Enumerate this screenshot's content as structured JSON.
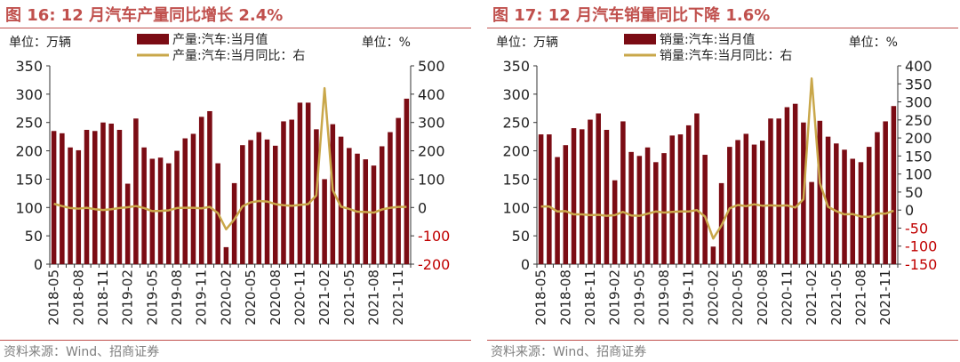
{
  "panels": [
    {
      "title": "图 16:  12 月汽车产量同比增长 2.4%",
      "source": "资料来源：Wind、招商证券",
      "unit_left": "单位：万辆",
      "unit_right": "单位：%",
      "chart_data": {
        "type": "bar",
        "x": [
          "2018-05",
          "2018-06",
          "2018-07",
          "2018-08",
          "2018-09",
          "2018-10",
          "2018-11",
          "2018-12",
          "2019-01",
          "2019-02",
          "2019-03",
          "2019-04",
          "2019-05",
          "2019-06",
          "2019-07",
          "2019-08",
          "2019-09",
          "2019-10",
          "2019-11",
          "2019-12",
          "2020-01",
          "2020-02",
          "2020-03",
          "2020-04",
          "2020-05",
          "2020-06",
          "2020-07",
          "2020-08",
          "2020-09",
          "2020-10",
          "2020-11",
          "2020-12",
          "2021-01",
          "2021-02",
          "2021-03",
          "2021-04",
          "2021-05",
          "2021-06",
          "2021-07",
          "2021-08",
          "2021-09",
          "2021-10",
          "2021-11",
          "2021-12"
        ],
        "xticks": [
          "2018-05",
          "2018-08",
          "2018-11",
          "2019-02",
          "2019-05",
          "2019-08",
          "2019-11",
          "2020-02",
          "2020-05",
          "2020-08",
          "2020-11",
          "2021-02",
          "2021-05",
          "2021-08",
          "2021-11"
        ],
        "series": [
          {
            "name": "产量:汽车:当月值",
            "type": "bar",
            "axis": "left",
            "color": "#7b0c14",
            "values": [
              235,
              231,
              206,
              201,
              237,
              235,
              250,
              248,
              237,
              142,
              257,
              206,
              186,
              188,
              178,
              200,
              222,
              230,
              260,
              270,
              178,
              30,
              143,
              210,
              219,
              233,
              220,
              209,
              252,
              255,
              285,
              285,
              238,
              150,
              247,
              225,
              205,
              195,
              185,
              174,
              208,
              233,
              258,
              292
            ]
          },
          {
            "name": "产量:汽车:当月同比：右",
            "type": "line",
            "axis": "right",
            "color": "#c9a74a",
            "values": [
              13,
              5,
              -2,
              -4,
              -1,
              -6,
              -9,
              -6,
              -2,
              1,
              5,
              -2,
              -13,
              -12,
              -10,
              -2,
              -1,
              -1,
              -3,
              2,
              -20,
              -77,
              -42,
              4,
              18,
              23,
              21,
              12,
              8,
              6,
              9,
              12,
              43,
              421,
              61,
              3,
              -5,
              -15,
              -16,
              -18,
              -7,
              -1,
              2,
              2
            ]
          }
        ],
        "y_left": {
          "min": 0,
          "max": 350,
          "ticks": [
            "0",
            "50",
            "100",
            "150",
            "200",
            "250",
            "300",
            "350"
          ]
        },
        "y_right": {
          "min": -200,
          "max": 500,
          "ticks": [
            "-200",
            "-100",
            "0",
            "100",
            "200",
            "300",
            "400",
            "500"
          ]
        }
      }
    },
    {
      "title": "图 17:  12 月汽车销量同比下降 1.6%",
      "source": "资料来源：Wind、招商证券",
      "unit_left": "单位：万辆",
      "unit_right": "单位：%",
      "chart_data": {
        "type": "bar",
        "x": [
          "2018-05",
          "2018-06",
          "2018-07",
          "2018-08",
          "2018-09",
          "2018-10",
          "2018-11",
          "2018-12",
          "2019-01",
          "2019-02",
          "2019-03",
          "2019-04",
          "2019-05",
          "2019-06",
          "2019-07",
          "2019-08",
          "2019-09",
          "2019-10",
          "2019-11",
          "2019-12",
          "2020-01",
          "2020-02",
          "2020-03",
          "2020-04",
          "2020-05",
          "2020-06",
          "2020-07",
          "2020-08",
          "2020-09",
          "2020-10",
          "2020-11",
          "2020-12",
          "2021-01",
          "2021-02",
          "2021-03",
          "2021-04",
          "2021-05",
          "2021-06",
          "2021-07",
          "2021-08",
          "2021-09",
          "2021-10",
          "2021-11",
          "2021-12"
        ],
        "xticks": [
          "2018-05",
          "2018-08",
          "2018-11",
          "2019-02",
          "2019-05",
          "2019-08",
          "2019-11",
          "2020-02",
          "2020-05",
          "2020-08",
          "2020-11",
          "2021-02",
          "2021-05",
          "2021-08",
          "2021-11"
        ],
        "series": [
          {
            "name": "销量:汽车:当月值",
            "type": "bar",
            "axis": "left",
            "color": "#7b0c14",
            "values": [
              229,
              229,
              189,
              210,
              240,
              238,
              255,
              266,
              237,
              148,
              252,
              198,
              191,
              206,
              180,
              196,
              227,
              229,
              245,
              266,
              193,
              31,
              143,
              207,
              219,
              230,
              211,
              218,
              257,
              257,
              277,
              283,
              250,
              145,
              253,
              225,
              213,
              202,
              186,
              180,
              207,
              233,
              252,
              279
            ]
          },
          {
            "name": "销量:汽车:当月同比：右",
            "type": "line",
            "axis": "right",
            "color": "#c9a74a",
            "values": [
              10,
              10,
              -4,
              -3,
              -12,
              -12,
              -14,
              -13,
              -16,
              -14,
              -5,
              -15,
              -16,
              -10,
              -4,
              -7,
              -5,
              -4,
              -4,
              0,
              -18,
              -79,
              -43,
              5,
              14,
              11,
              16,
              12,
              13,
              12,
              13,
              7,
              30,
              365,
              75,
              9,
              -3,
              -12,
              -11,
              -18,
              -19,
              -9,
              -10,
              -2
            ]
          }
        ],
        "y_left": {
          "min": 0,
          "max": 350,
          "ticks": [
            "0",
            "50",
            "100",
            "150",
            "200",
            "250",
            "300",
            "350"
          ]
        },
        "y_right": {
          "min": -150,
          "max": 400,
          "ticks": [
            "-150",
            "-100",
            "-50",
            "0",
            "50",
            "100",
            "150",
            "200",
            "250",
            "300",
            "350",
            "400"
          ]
        }
      }
    }
  ]
}
